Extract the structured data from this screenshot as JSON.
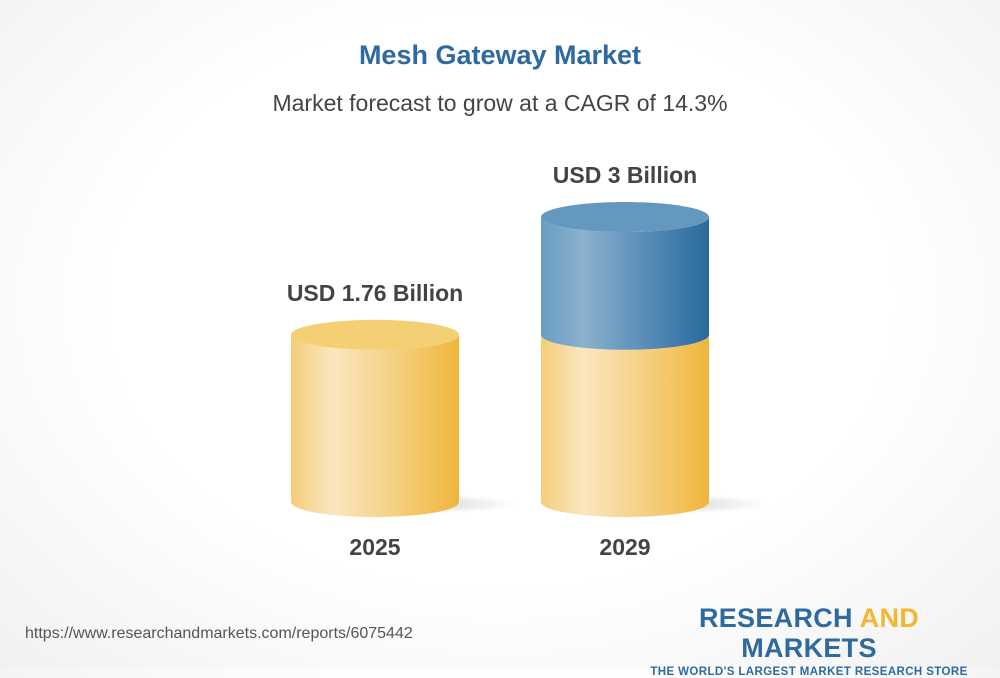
{
  "chart_data": {
    "type": "bar",
    "style": "3d-cylinder",
    "title": "Mesh Gateway Market",
    "subtitle": "Market forecast to grow at a CAGR of 14.3%",
    "categories": [
      "2025",
      "2029"
    ],
    "values": [
      1.76,
      3
    ],
    "data_labels": [
      "USD 1.76 Billion",
      "USD 3 Billion"
    ],
    "unit": "USD Billion",
    "grid": false,
    "colors": {
      "base": "#f2c050",
      "growth": "#2d6ba0",
      "title": "#2c6aa0",
      "label": "#444444"
    }
  },
  "footer": {
    "url": "https://www.researchandmarkets.com/reports/6075442",
    "logo_part1": "RESEARCH ",
    "logo_part2": "AND",
    "logo_part3": " MARKETS",
    "tagline": "THE WORLD'S LARGEST MARKET RESEARCH STORE"
  }
}
